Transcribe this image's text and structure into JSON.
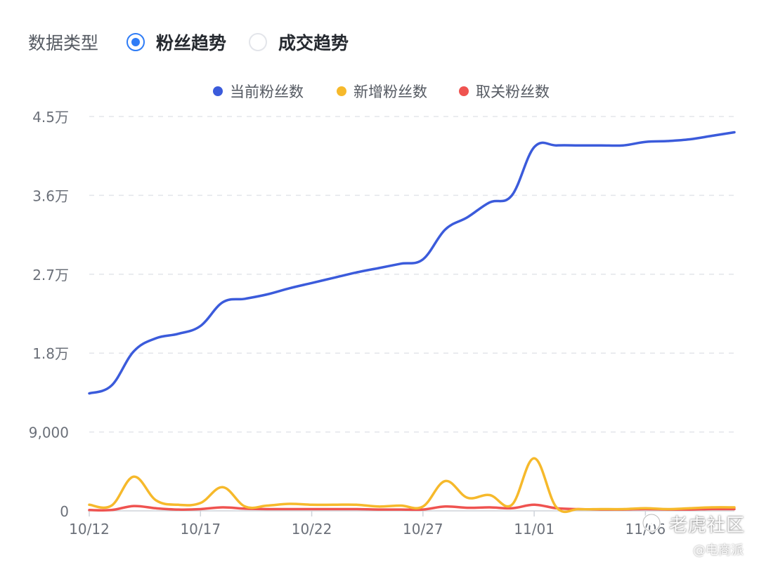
{
  "header": {
    "type_label": "数据类型",
    "options": [
      {
        "label": "粉丝趋势",
        "checked": true
      },
      {
        "label": "成交趋势",
        "checked": false
      }
    ]
  },
  "chart_data": {
    "type": "line",
    "title": "",
    "xlabel": "",
    "ylabel": "",
    "ylim": [
      0,
      45000
    ],
    "yticks": [
      {
        "value": 0,
        "label": "0"
      },
      {
        "value": 9000,
        "label": "9,000"
      },
      {
        "value": 18000,
        "label": "1.8万"
      },
      {
        "value": 27000,
        "label": "2.7万"
      },
      {
        "value": 36000,
        "label": "3.6万"
      },
      {
        "value": 45000,
        "label": "4.5万"
      }
    ],
    "xticks": [
      "10/12",
      "10/17",
      "10/22",
      "10/27",
      "11/01",
      "11/06"
    ],
    "x": [
      "10/12",
      "10/13",
      "10/14",
      "10/15",
      "10/16",
      "10/17",
      "10/18",
      "10/19",
      "10/20",
      "10/21",
      "10/22",
      "10/23",
      "10/24",
      "10/25",
      "10/26",
      "10/27",
      "10/28",
      "10/29",
      "10/30",
      "10/31",
      "11/01",
      "11/02",
      "11/03",
      "11/04",
      "11/05",
      "11/06",
      "11/07",
      "11/08",
      "11/09",
      "11/10"
    ],
    "grid": true,
    "legend_position": "top-center",
    "series": [
      {
        "name": "当前粉丝数",
        "color": "#3b5bdb",
        "values": [
          13400,
          14300,
          18200,
          19700,
          20200,
          21100,
          23800,
          24200,
          24700,
          25400,
          26000,
          26600,
          27200,
          27700,
          28200,
          28700,
          32100,
          33500,
          35200,
          36000,
          41500,
          41700,
          41700,
          41700,
          41700,
          42100,
          42200,
          42400,
          42800,
          43200
        ]
      },
      {
        "name": "新增粉丝数",
        "color": "#f6b92b",
        "values": [
          700,
          600,
          3900,
          1200,
          700,
          900,
          2700,
          500,
          600,
          800,
          700,
          700,
          700,
          500,
          600,
          500,
          3400,
          1500,
          1800,
          700,
          6000,
          400,
          200,
          200,
          200,
          300,
          200,
          300,
          400,
          400
        ]
      },
      {
        "name": "取关粉丝数",
        "color": "#ef5350",
        "values": [
          100,
          100,
          550,
          300,
          150,
          200,
          400,
          250,
          200,
          200,
          200,
          200,
          200,
          150,
          150,
          150,
          500,
          350,
          400,
          300,
          700,
          300,
          200,
          150,
          150,
          200,
          150,
          150,
          200,
          200
        ]
      }
    ]
  },
  "watermark": {
    "main": "老虎社区",
    "sub": "@电商派"
  }
}
